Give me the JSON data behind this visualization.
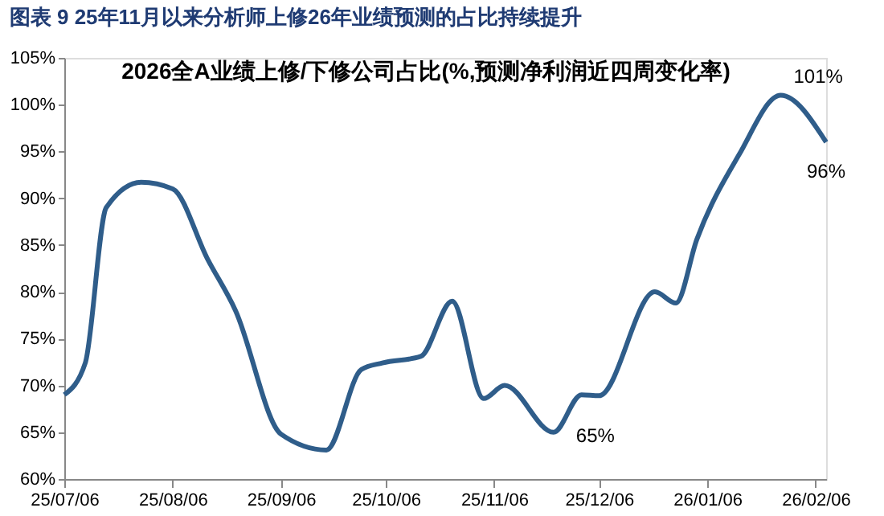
{
  "chart_data": {
    "type": "line",
    "title": "图表 9   25年11月以来分析师上修26年业绩预测的占比持续提升",
    "subtitle": "2026全A业绩上修/下修公司占比(%,预测净利润近四周变化率)",
    "x": [
      "2025-07-06",
      "2025-07-12",
      "2025-07-18",
      "2025-07-28",
      "2025-08-06",
      "2025-08-16",
      "2025-08-24",
      "2025-09-06",
      "2025-09-19",
      "2025-09-29",
      "2025-10-05",
      "2025-10-16",
      "2025-10-25",
      "2025-11-03",
      "2025-11-09",
      "2025-11-23",
      "2025-12-01",
      "2025-12-06",
      "2025-12-22",
      "2025-12-28",
      "2026-01-03",
      "2026-01-15",
      "2026-01-27",
      "2026-02-09"
    ],
    "series": [
      {
        "color": "#2f5d8a",
        "values": [
          69,
          72.4,
          89,
          91.7,
          91,
          83.5,
          78,
          64.8,
          63.1,
          71.7,
          72.4,
          73.1,
          79,
          68.6,
          70,
          65,
          69,
          68.9,
          80,
          78.8,
          85.6,
          94.6,
          101,
          96
        ]
      }
    ],
    "xlim": [
      "2025-07-06",
      "2026-02-09"
    ],
    "xticks": [
      {
        "value": "2025-07-06",
        "label": "25/07/06"
      },
      {
        "value": "2025-08-06",
        "label": "25/08/06"
      },
      {
        "value": "2025-09-06",
        "label": "25/09/06"
      },
      {
        "value": "2025-10-06",
        "label": "25/10/06"
      },
      {
        "value": "2025-11-06",
        "label": "25/11/06"
      },
      {
        "value": "2025-12-06",
        "label": "25/12/06"
      },
      {
        "value": "2026-01-06",
        "label": "26/01/06"
      },
      {
        "value": "2026-02-06",
        "label": "26/02/06"
      }
    ],
    "ylim": [
      60,
      105
    ],
    "yticks": [
      {
        "value": 60,
        "label": "60%"
      },
      {
        "value": 65,
        "label": "65%"
      },
      {
        "value": 70,
        "label": "70%"
      },
      {
        "value": 75,
        "label": "75%"
      },
      {
        "value": 80,
        "label": "80%"
      },
      {
        "value": 85,
        "label": "85%"
      },
      {
        "value": 90,
        "label": "90%"
      },
      {
        "value": 95,
        "label": "95%"
      },
      {
        "value": 100,
        "label": "100%"
      },
      {
        "value": 105,
        "label": "105%"
      }
    ],
    "annotations": [
      {
        "text": "101%",
        "x": "2026-01-27",
        "y": 101
      },
      {
        "text": "65%",
        "x": "2025-11-23",
        "y": 65
      },
      {
        "text": "96%",
        "x": "2026-02-09",
        "y": 96
      }
    ],
    "grid": false,
    "marker": "none",
    "line_style": "solid"
  }
}
